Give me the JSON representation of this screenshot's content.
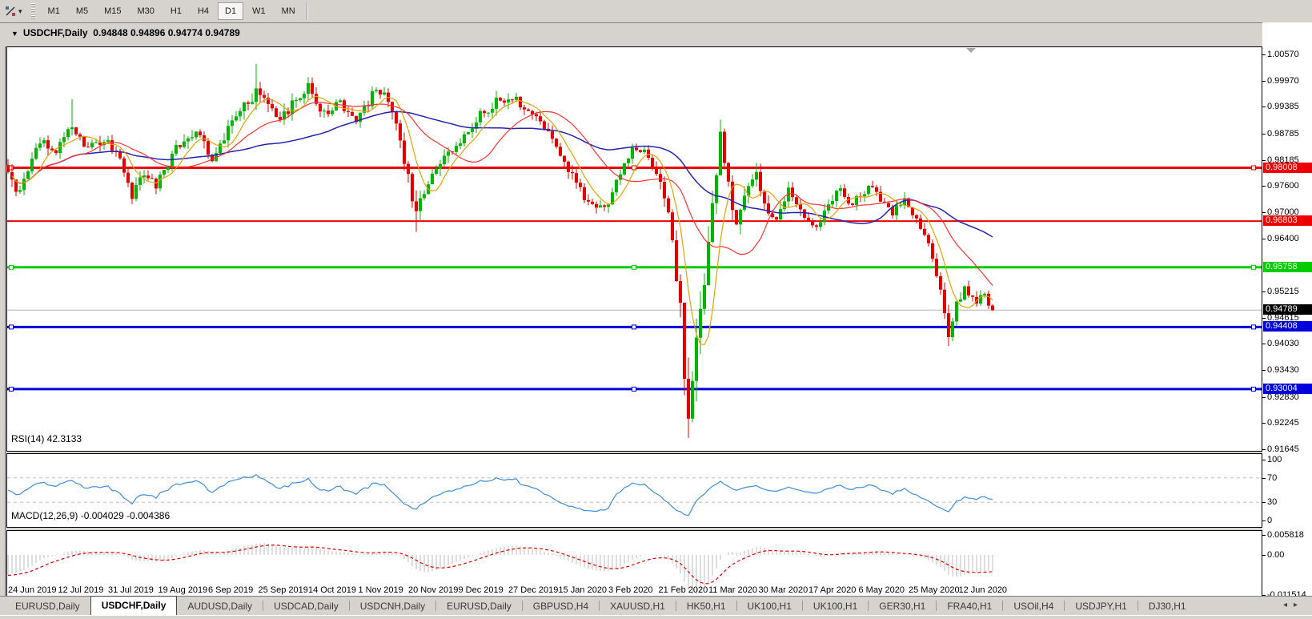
{
  "toolbar": {
    "tool_icon": "crosshair-tool",
    "dropdown_caret": "▾",
    "timeframes": [
      {
        "label": "M1",
        "active": false
      },
      {
        "label": "M5",
        "active": false
      },
      {
        "label": "M15",
        "active": false
      },
      {
        "label": "M30",
        "active": false
      },
      {
        "label": "H1",
        "active": false
      },
      {
        "label": "H4",
        "active": false
      },
      {
        "label": "D1",
        "active": true
      },
      {
        "label": "W1",
        "active": false
      },
      {
        "label": "MN",
        "active": false
      }
    ]
  },
  "chart": {
    "title_symbol": "USDCHF,Daily",
    "title_ohlc": "0.94848 0.94896 0.94774 0.94789",
    "title_caret": "▼"
  },
  "price_axis": {
    "ticks": [
      "1.00570",
      "0.99970",
      "0.99385",
      "0.98785",
      "0.98185",
      "0.97600",
      "0.97000",
      "0.96400",
      "0.95215",
      "0.94615",
      "0.94030",
      "0.93430",
      "0.92830",
      "0.92245",
      "0.91645"
    ]
  },
  "levels": [
    {
      "value": 0.98008,
      "label": "0.98008",
      "color": "#ee0000",
      "thick": 3,
      "selected": true
    },
    {
      "value": 0.96803,
      "label": "0.96803",
      "color": "#ee0000",
      "thick": 2,
      "selected": false
    },
    {
      "value": 0.95758,
      "label": "0.95758",
      "color": "#00cc00",
      "thick": 3,
      "selected": true
    },
    {
      "value": 0.94408,
      "label": "0.94408",
      "color": "#0000dd",
      "thick": 3,
      "selected": true
    },
    {
      "value": 0.93004,
      "label": "0.93004",
      "color": "#0000dd",
      "thick": 3,
      "selected": true
    }
  ],
  "current_price": {
    "value": 0.94789,
    "label": "0.94789",
    "line_color": "#b4b4b4",
    "badge_bg": "#000000"
  },
  "rsi": {
    "label": "RSI(14) 42.3133",
    "period": 14,
    "value": 42.3133,
    "axis": [
      "100",
      "70",
      "30",
      "0"
    ],
    "axis_values": [
      100,
      70,
      30,
      0
    ],
    "upper": 70,
    "lower": 30,
    "line_color": "#3e8ede"
  },
  "macd": {
    "label": "MACD(12,26,9) -0.004029 -0.004386",
    "params": "12,26,9",
    "macd_value": -0.004029,
    "signal_value": -0.004386,
    "axis": [
      "0.005818",
      "0.00",
      "-0.011514"
    ],
    "axis_values": [
      0.005818,
      0.0,
      -0.011514
    ],
    "hist_color": "#bdbdbd",
    "signal_color": "#e00000"
  },
  "dates": [
    "24 Jun 2019",
    "12 Jul 2019",
    "31 Jul 2019",
    "19 Aug 2019",
    "6 Sep 2019",
    "25 Sep 2019",
    "14 Oct 2019",
    "1 Nov 2019",
    "20 Nov 2019",
    "9 Dec 2019",
    "27 Dec 2019",
    "15 Jan 2020",
    "3 Feb 2020",
    "21 Feb 2020",
    "11 Mar 2020",
    "30 Mar 2020",
    "17 Apr 2020",
    "6 May 2020",
    "25 May 2020",
    "12 Jun 2020"
  ],
  "tabs": {
    "items": [
      {
        "label": "EURUSD,Daily",
        "active": false
      },
      {
        "label": "USDCHF,Daily",
        "active": true
      },
      {
        "label": "AUDUSD,Daily",
        "active": false
      },
      {
        "label": "USDCAD,Daily",
        "active": false
      },
      {
        "label": "USDCNH,Daily",
        "active": false
      },
      {
        "label": "EURUSD,Daily",
        "active": false
      },
      {
        "label": "GBPUSD,H4",
        "active": false
      },
      {
        "label": "XAUUSD,H1",
        "active": false
      },
      {
        "label": "HK50,H1",
        "active": false
      },
      {
        "label": "UK100,H1",
        "active": false
      },
      {
        "label": "UK100,H1",
        "active": false
      },
      {
        "label": "GER30,H1",
        "active": false
      },
      {
        "label": "FRA40,H1",
        "active": false
      },
      {
        "label": "USOil,H4",
        "active": false
      },
      {
        "label": "USDJPY,H1",
        "active": false
      },
      {
        "label": "DJ30,H1",
        "active": false
      }
    ],
    "scroll_left_icon": "◂",
    "scroll_right_icon": "▸"
  },
  "chart_data": {
    "type": "candlestick",
    "symbol": "USDCHF",
    "timeframe": "Daily",
    "open": 0.94848,
    "high": 0.94896,
    "low": 0.94774,
    "close": 0.94789,
    "y_range": [
      0.91645,
      1.0057
    ],
    "bars": 247,
    "colors": {
      "bull": "#00b400",
      "bear": "#e00000"
    },
    "ma": [
      {
        "name": "fast",
        "period": 7,
        "color": "#e8a200"
      },
      {
        "name": "medium",
        "period": 20,
        "color": "#ff3232"
      },
      {
        "name": "slow",
        "period": 50,
        "color": "#2424b4"
      }
    ],
    "anchors": [
      [
        0,
        0.978,
        0.0028
      ],
      [
        3,
        0.9748,
        0.0028
      ],
      [
        8,
        0.9858,
        0.0026
      ],
      [
        12,
        0.9833,
        0.0024
      ],
      [
        16,
        0.9903,
        0.0028
      ],
      [
        20,
        0.9843,
        0.0024
      ],
      [
        24,
        0.9868,
        0.0022
      ],
      [
        28,
        0.982,
        0.0022
      ],
      [
        31,
        0.9732,
        0.0026
      ],
      [
        34,
        0.979,
        0.0024
      ],
      [
        37,
        0.9762,
        0.0022
      ],
      [
        42,
        0.9845,
        0.0022
      ],
      [
        47,
        0.9887,
        0.0026
      ],
      [
        51,
        0.9826,
        0.0024
      ],
      [
        56,
        0.9906,
        0.0026
      ],
      [
        62,
        0.9974,
        0.0032
      ],
      [
        65,
        0.9944,
        0.0028
      ],
      [
        68,
        0.9906,
        0.0026
      ],
      [
        72,
        0.9958,
        0.0026
      ],
      [
        75,
        0.9984,
        0.0026
      ],
      [
        79,
        0.9921,
        0.0024
      ],
      [
        83,
        0.9949,
        0.0022
      ],
      [
        87,
        0.9906,
        0.0022
      ],
      [
        91,
        0.9964,
        0.0024
      ],
      [
        94,
        0.9976,
        0.0022
      ],
      [
        97,
        0.9901,
        0.0026
      ],
      [
        100,
        0.9772,
        0.0034
      ],
      [
        102,
        0.9706,
        0.0036
      ],
      [
        105,
        0.977,
        0.0028
      ],
      [
        109,
        0.982,
        0.0024
      ],
      [
        114,
        0.9874,
        0.0022
      ],
      [
        118,
        0.992,
        0.0024
      ],
      [
        122,
        0.9949,
        0.0024
      ],
      [
        126,
        0.9959,
        0.0022
      ],
      [
        130,
        0.9931,
        0.0022
      ],
      [
        134,
        0.9891,
        0.0022
      ],
      [
        138,
        0.9836,
        0.0024
      ],
      [
        141,
        0.9781,
        0.0024
      ],
      [
        144,
        0.9731,
        0.0022
      ],
      [
        147,
        0.9706,
        0.002
      ],
      [
        150,
        0.9721,
        0.002
      ],
      [
        153,
        0.9786,
        0.0024
      ],
      [
        156,
        0.9841,
        0.0022
      ],
      [
        159,
        0.9846,
        0.002
      ],
      [
        162,
        0.9791,
        0.0024
      ],
      [
        164,
        0.9731,
        0.0028
      ],
      [
        166,
        0.9641,
        0.004
      ],
      [
        168,
        0.9481,
        0.0055
      ],
      [
        169,
        0.9341,
        0.0065
      ],
      [
        170,
        0.9243,
        0.0072
      ],
      [
        172,
        0.9421,
        0.0068
      ],
      [
        174,
        0.9561,
        0.006
      ],
      [
        176,
        0.9701,
        0.0055
      ],
      [
        178,
        0.9868,
        0.005
      ],
      [
        180,
        0.9761,
        0.0045
      ],
      [
        182,
        0.9671,
        0.004
      ],
      [
        185,
        0.9771,
        0.0034
      ],
      [
        187,
        0.9801,
        0.003
      ],
      [
        189,
        0.9721,
        0.003
      ],
      [
        192,
        0.9681,
        0.0026
      ],
      [
        195,
        0.9746,
        0.0024
      ],
      [
        198,
        0.9701,
        0.0024
      ],
      [
        202,
        0.9666,
        0.0024
      ],
      [
        205,
        0.9721,
        0.0022
      ],
      [
        208,
        0.9756,
        0.0022
      ],
      [
        211,
        0.9716,
        0.0022
      ],
      [
        215,
        0.9761,
        0.0022
      ],
      [
        218,
        0.9731,
        0.002
      ],
      [
        221,
        0.9701,
        0.002
      ],
      [
        224,
        0.9726,
        0.002
      ],
      [
        227,
        0.9691,
        0.002
      ],
      [
        230,
        0.9631,
        0.0024
      ],
      [
        233,
        0.9531,
        0.003
      ],
      [
        235,
        0.9431,
        0.003
      ],
      [
        237,
        0.9491,
        0.0026
      ],
      [
        239,
        0.9531,
        0.0022
      ],
      [
        242,
        0.9501,
        0.002
      ],
      [
        244,
        0.9512,
        0.0018
      ],
      [
        246,
        0.94789,
        0.0014
      ]
    ],
    "spikes": [
      {
        "i": 16,
        "high": 0.9956
      },
      {
        "i": 62,
        "high": 1.0036
      },
      {
        "i": 75,
        "high": 1.0006
      },
      {
        "i": 102,
        "low": 0.9656
      },
      {
        "i": 170,
        "low": 0.9203
      },
      {
        "i": 178,
        "high": 0.9905
      },
      {
        "i": 235,
        "low": 0.9398
      }
    ]
  }
}
